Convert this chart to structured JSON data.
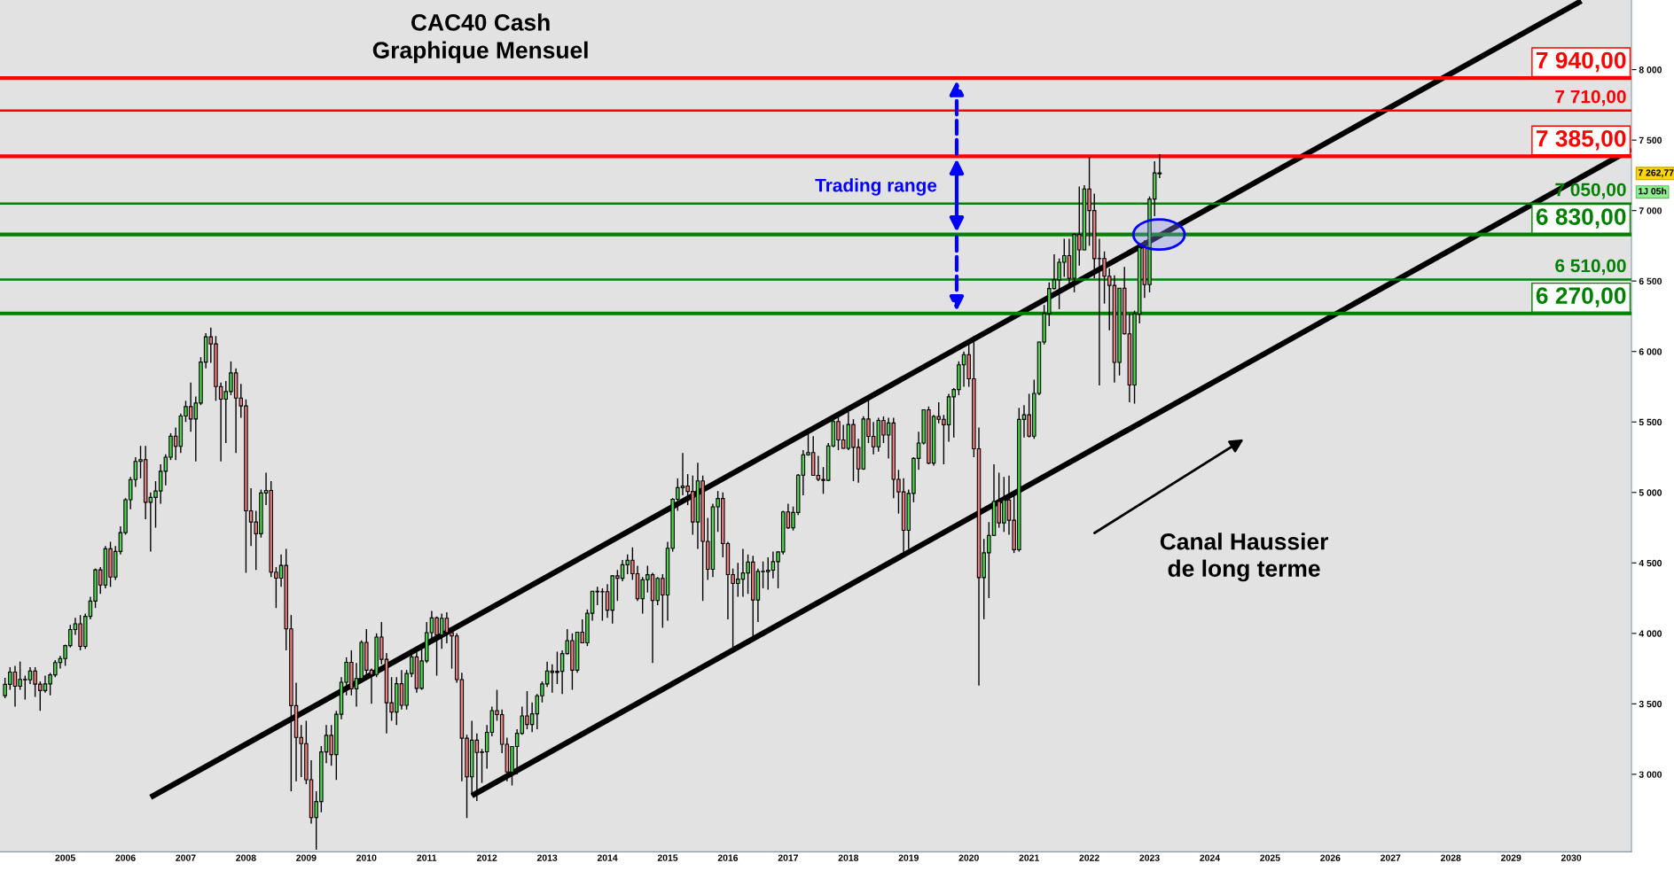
{
  "chart_data": {
    "type": "candlestick",
    "title": "CAC40 Cash\nGraphique Mensuel",
    "x": [
      "2004-01",
      "2004-02",
      "2004-03",
      "2004-04",
      "2004-05",
      "2004-06",
      "2004-07",
      "2004-08",
      "2004-09",
      "2004-10",
      "2004-11",
      "2004-12",
      "2005-01",
      "2005-02",
      "2005-03",
      "2005-04",
      "2005-05",
      "2005-06",
      "2005-07",
      "2005-08",
      "2005-09",
      "2005-10",
      "2005-11",
      "2005-12",
      "2006-01",
      "2006-02",
      "2006-03",
      "2006-04",
      "2006-05",
      "2006-06",
      "2006-07",
      "2006-08",
      "2006-09",
      "2006-10",
      "2006-11",
      "2006-12",
      "2007-01",
      "2007-02",
      "2007-03",
      "2007-04",
      "2007-05",
      "2007-06",
      "2007-07",
      "2007-08",
      "2007-09",
      "2007-10",
      "2007-11",
      "2007-12",
      "2008-01",
      "2008-02",
      "2008-03",
      "2008-04",
      "2008-05",
      "2008-06",
      "2008-07",
      "2008-08",
      "2008-09",
      "2008-10",
      "2008-11",
      "2008-12",
      "2009-01",
      "2009-02",
      "2009-03",
      "2009-04",
      "2009-05",
      "2009-06",
      "2009-07",
      "2009-08",
      "2009-09",
      "2009-10",
      "2009-11",
      "2009-12",
      "2010-01",
      "2010-02",
      "2010-03",
      "2010-04",
      "2010-05",
      "2010-06",
      "2010-07",
      "2010-08",
      "2010-09",
      "2010-10",
      "2010-11",
      "2010-12",
      "2011-01",
      "2011-02",
      "2011-03",
      "2011-04",
      "2011-05",
      "2011-06",
      "2011-07",
      "2011-08",
      "2011-09",
      "2011-10",
      "2011-11",
      "2011-12",
      "2012-01",
      "2012-02",
      "2012-03",
      "2012-04",
      "2012-05",
      "2012-06",
      "2012-07",
      "2012-08",
      "2012-09",
      "2012-10",
      "2012-11",
      "2012-12",
      "2013-01",
      "2013-02",
      "2013-03",
      "2013-04",
      "2013-05",
      "2013-06",
      "2013-07",
      "2013-08",
      "2013-09",
      "2013-10",
      "2013-11",
      "2013-12",
      "2014-01",
      "2014-02",
      "2014-03",
      "2014-04",
      "2014-05",
      "2014-06",
      "2014-07",
      "2014-08",
      "2014-09",
      "2014-10",
      "2014-11",
      "2014-12",
      "2015-01",
      "2015-02",
      "2015-03",
      "2015-04",
      "2015-05",
      "2015-06",
      "2015-07",
      "2015-08",
      "2015-09",
      "2015-10",
      "2015-11",
      "2015-12",
      "2016-01",
      "2016-02",
      "2016-03",
      "2016-04",
      "2016-05",
      "2016-06",
      "2016-07",
      "2016-08",
      "2016-09",
      "2016-10",
      "2016-11",
      "2016-12",
      "2017-01",
      "2017-02",
      "2017-03",
      "2017-04",
      "2017-05",
      "2017-06",
      "2017-07",
      "2017-08",
      "2017-09",
      "2017-10",
      "2017-11",
      "2017-12",
      "2018-01",
      "2018-02",
      "2018-03",
      "2018-04",
      "2018-05",
      "2018-06",
      "2018-07",
      "2018-08",
      "2018-09",
      "2018-10",
      "2018-11",
      "2018-12",
      "2019-01",
      "2019-02",
      "2019-03",
      "2019-04",
      "2019-05",
      "2019-06",
      "2019-07",
      "2019-08",
      "2019-09",
      "2019-10",
      "2019-11",
      "2019-12",
      "2020-01",
      "2020-02",
      "2020-03",
      "2020-04",
      "2020-05",
      "2020-06",
      "2020-07",
      "2020-08",
      "2020-09",
      "2020-10",
      "2020-11",
      "2020-12",
      "2021-01",
      "2021-02",
      "2021-03",
      "2021-04",
      "2021-05",
      "2021-06",
      "2021-07",
      "2021-08",
      "2021-09",
      "2021-10",
      "2021-11",
      "2021-12",
      "2022-01",
      "2022-02",
      "2022-03",
      "2022-04",
      "2022-05",
      "2022-06",
      "2022-07",
      "2022-08",
      "2022-09",
      "2022-10",
      "2022-11",
      "2022-12",
      "2023-01",
      "2023-02",
      "2023-03"
    ],
    "ohlc": [
      [
        3558,
        3685,
        3540,
        3638
      ],
      [
        3638,
        3760,
        3600,
        3725
      ],
      [
        3725,
        3770,
        3480,
        3625
      ],
      [
        3625,
        3800,
        3600,
        3674
      ],
      [
        3674,
        3700,
        3530,
        3670
      ],
      [
        3670,
        3760,
        3640,
        3733
      ],
      [
        3733,
        3760,
        3550,
        3640
      ],
      [
        3640,
        3660,
        3450,
        3594
      ],
      [
        3594,
        3700,
        3580,
        3641
      ],
      [
        3641,
        3720,
        3560,
        3706
      ],
      [
        3706,
        3810,
        3690,
        3793
      ],
      [
        3793,
        3840,
        3750,
        3821
      ],
      [
        3821,
        3920,
        3770,
        3913
      ],
      [
        3913,
        4060,
        3900,
        4027
      ],
      [
        4027,
        4110,
        3990,
        4068
      ],
      [
        4068,
        4130,
        3880,
        3908
      ],
      [
        3908,
        4140,
        3890,
        4121
      ],
      [
        4121,
        4260,
        4100,
        4229
      ],
      [
        4229,
        4460,
        4180,
        4451
      ],
      [
        4451,
        4470,
        4280,
        4343
      ],
      [
        4343,
        4620,
        4320,
        4600
      ],
      [
        4600,
        4650,
        4330,
        4400
      ],
      [
        4400,
        4620,
        4380,
        4581
      ],
      [
        4581,
        4760,
        4560,
        4715
      ],
      [
        4715,
        4960,
        4700,
        4948
      ],
      [
        4948,
        5110,
        4880,
        5091
      ],
      [
        5091,
        5250,
        5040,
        5220
      ],
      [
        5220,
        5330,
        5100,
        5233
      ],
      [
        5233,
        5330,
        4810,
        4930
      ],
      [
        4930,
        5000,
        4580,
        4965
      ],
      [
        4965,
        5080,
        4750,
        5010
      ],
      [
        5010,
        5200,
        4920,
        5150
      ],
      [
        5150,
        5270,
        5050,
        5250
      ],
      [
        5250,
        5420,
        5230,
        5399
      ],
      [
        5399,
        5460,
        5230,
        5327
      ],
      [
        5327,
        5560,
        5280,
        5542
      ],
      [
        5542,
        5650,
        5500,
        5609
      ],
      [
        5609,
        5780,
        5430,
        5521
      ],
      [
        5521,
        5680,
        5220,
        5634
      ],
      [
        5634,
        5960,
        5620,
        5925
      ],
      [
        5925,
        6130,
        5880,
        6104
      ],
      [
        6104,
        6170,
        5920,
        6054
      ],
      [
        6054,
        6110,
        5650,
        5751
      ],
      [
        5751,
        5780,
        5220,
        5662
      ],
      [
        5662,
        5790,
        5350,
        5716
      ],
      [
        5716,
        5930,
        5690,
        5848
      ],
      [
        5848,
        5880,
        5280,
        5670
      ],
      [
        5670,
        5770,
        5530,
        5614
      ],
      [
        5614,
        5660,
        4430,
        4870
      ],
      [
        4870,
        5030,
        4620,
        4790
      ],
      [
        4790,
        4870,
        4450,
        4707
      ],
      [
        4707,
        5020,
        4680,
        4996
      ],
      [
        4996,
        5140,
        4910,
        5014
      ],
      [
        5014,
        5080,
        4400,
        4434
      ],
      [
        4434,
        4470,
        4180,
        4392
      ],
      [
        4392,
        4560,
        4330,
        4482
      ],
      [
        4482,
        4600,
        3880,
        4032
      ],
      [
        4032,
        4130,
        2880,
        3487
      ],
      [
        3487,
        3650,
        2950,
        3262
      ],
      [
        3262,
        3350,
        2980,
        3218
      ],
      [
        3218,
        3380,
        2930,
        2962
      ],
      [
        2962,
        3100,
        2650,
        2693
      ],
      [
        2693,
        2880,
        2465,
        2807
      ],
      [
        2807,
        3200,
        2730,
        3159
      ],
      [
        3159,
        3350,
        3080,
        3277
      ],
      [
        3277,
        3350,
        3060,
        3140
      ],
      [
        3140,
        3450,
        2960,
        3426
      ],
      [
        3426,
        3690,
        3390,
        3653
      ],
      [
        3653,
        3830,
        3560,
        3795
      ],
      [
        3795,
        3880,
        3560,
        3607
      ],
      [
        3607,
        3790,
        3480,
        3680
      ],
      [
        3680,
        3950,
        3650,
        3936
      ],
      [
        3936,
        4030,
        3700,
        3739
      ],
      [
        3739,
        3750,
        3500,
        3708
      ],
      [
        3708,
        4000,
        3690,
        3974
      ],
      [
        3974,
        4080,
        3780,
        3816
      ],
      [
        3816,
        3860,
        3290,
        3508
      ],
      [
        3508,
        3690,
        3380,
        3442
      ],
      [
        3442,
        3690,
        3350,
        3643
      ],
      [
        3643,
        3740,
        3460,
        3490
      ],
      [
        3490,
        3740,
        3460,
        3715
      ],
      [
        3715,
        3880,
        3690,
        3833
      ],
      [
        3833,
        3900,
        3580,
        3610
      ],
      [
        3610,
        3900,
        3600,
        3805
      ],
      [
        3805,
        4080,
        3790,
        4005
      ],
      [
        4005,
        4160,
        3950,
        4110
      ],
      [
        4110,
        4120,
        3700,
        3989
      ],
      [
        3989,
        4140,
        3890,
        4107
      ],
      [
        4107,
        4150,
        3930,
        4006
      ],
      [
        4006,
        4020,
        3750,
        3982
      ],
      [
        3982,
        4000,
        3650,
        3672
      ],
      [
        3672,
        3720,
        2950,
        3256
      ],
      [
        3256,
        3280,
        2690,
        2982
      ],
      [
        2982,
        3380,
        2850,
        3242
      ],
      [
        3242,
        3290,
        2810,
        3155
      ],
      [
        3155,
        3180,
        2940,
        3160
      ],
      [
        3160,
        3350,
        3040,
        3298
      ],
      [
        3298,
        3480,
        3270,
        3452
      ],
      [
        3452,
        3600,
        3380,
        3424
      ],
      [
        3424,
        3460,
        3150,
        3213
      ],
      [
        3213,
        3260,
        2950,
        3017
      ],
      [
        3017,
        3200,
        2920,
        3197
      ],
      [
        3197,
        3320,
        3000,
        3291
      ],
      [
        3291,
        3480,
        3280,
        3414
      ],
      [
        3414,
        3590,
        3320,
        3354
      ],
      [
        3354,
        3510,
        3300,
        3429
      ],
      [
        3429,
        3570,
        3320,
        3557
      ],
      [
        3557,
        3660,
        3510,
        3641
      ],
      [
        3641,
        3800,
        3620,
        3733
      ],
      [
        3733,
        3780,
        3580,
        3723
      ],
      [
        3723,
        3870,
        3640,
        3731
      ],
      [
        3731,
        3880,
        3570,
        3857
      ],
      [
        3857,
        4030,
        3850,
        3949
      ],
      [
        3949,
        4000,
        3600,
        3739
      ],
      [
        3739,
        4010,
        3720,
        4008
      ],
      [
        4008,
        4100,
        3930,
        3933
      ],
      [
        3933,
        4170,
        3910,
        4143
      ],
      [
        4143,
        4300,
        4090,
        4299
      ],
      [
        4299,
        4330,
        4200,
        4295
      ],
      [
        4295,
        4320,
        4090,
        4296
      ],
      [
        4296,
        4350,
        4110,
        4165
      ],
      [
        4165,
        4410,
        4070,
        4408
      ],
      [
        4408,
        4450,
        4230,
        4391
      ],
      [
        4391,
        4520,
        4370,
        4487
      ],
      [
        4487,
        4560,
        4420,
        4519
      ],
      [
        4519,
        4610,
        4380,
        4423
      ],
      [
        4423,
        4480,
        4230,
        4246
      ],
      [
        4246,
        4400,
        4140,
        4381
      ],
      [
        4381,
        4480,
        4290,
        4416
      ],
      [
        4416,
        4430,
        3790,
        4233
      ],
      [
        4233,
        4400,
        4200,
        4390
      ],
      [
        4390,
        4420,
        4040,
        4272
      ],
      [
        4272,
        4650,
        4090,
        4604
      ],
      [
        4604,
        4960,
        4580,
        4951
      ],
      [
        4951,
        5100,
        4870,
        5034
      ],
      [
        5034,
        5280,
        4980,
        5046
      ],
      [
        5046,
        5130,
        4910,
        5007
      ],
      [
        5007,
        5120,
        4700,
        4790
      ],
      [
        4790,
        5210,
        4600,
        5082
      ],
      [
        5082,
        5120,
        4230,
        4653
      ],
      [
        4653,
        4820,
        4380,
        4455
      ],
      [
        4455,
        4920,
        4400,
        4898
      ],
      [
        4898,
        5010,
        4720,
        4957
      ],
      [
        4957,
        5000,
        4540,
        4637
      ],
      [
        4637,
        4650,
        4100,
        4417
      ],
      [
        4417,
        4460,
        3890,
        4354
      ],
      [
        4354,
        4500,
        4260,
        4385
      ],
      [
        4385,
        4600,
        4260,
        4429
      ],
      [
        4429,
        4560,
        4280,
        4506
      ],
      [
        4506,
        4550,
        3960,
        4237
      ],
      [
        4237,
        4460,
        4080,
        4440
      ],
      [
        4440,
        4510,
        4320,
        4438
      ],
      [
        4438,
        4540,
        4310,
        4448
      ],
      [
        4448,
        4580,
        4390,
        4509
      ],
      [
        4509,
        4580,
        4320,
        4578
      ],
      [
        4578,
        4870,
        4560,
        4862
      ],
      [
        4862,
        4920,
        4740,
        4749
      ],
      [
        4749,
        4900,
        4730,
        4858
      ],
      [
        4858,
        5130,
        4840,
        5123
      ],
      [
        5123,
        5300,
        4980,
        5267
      ],
      [
        5267,
        5440,
        5260,
        5283
      ],
      [
        5283,
        5400,
        5120,
        5121
      ],
      [
        5121,
        5260,
        5080,
        5093
      ],
      [
        5093,
        5180,
        4990,
        5086
      ],
      [
        5086,
        5350,
        5080,
        5330
      ],
      [
        5330,
        5520,
        5320,
        5503
      ],
      [
        5503,
        5540,
        5300,
        5373
      ],
      [
        5373,
        5480,
        5310,
        5313
      ],
      [
        5313,
        5570,
        5300,
        5482
      ],
      [
        5482,
        5520,
        5080,
        5320
      ],
      [
        5320,
        5380,
        5070,
        5167
      ],
      [
        5167,
        5540,
        5160,
        5521
      ],
      [
        5521,
        5660,
        5350,
        5398
      ],
      [
        5398,
        5500,
        5270,
        5324
      ],
      [
        5324,
        5530,
        5290,
        5511
      ],
      [
        5511,
        5540,
        5350,
        5407
      ],
      [
        5407,
        5530,
        5240,
        5493
      ],
      [
        5493,
        5530,
        4960,
        5093
      ],
      [
        5093,
        5160,
        4850,
        5004
      ],
      [
        5004,
        5100,
        4560,
        4731
      ],
      [
        4731,
        5020,
        4600,
        4993
      ],
      [
        4993,
        5250,
        4930,
        5241
      ],
      [
        5241,
        5430,
        5160,
        5351
      ],
      [
        5351,
        5590,
        5340,
        5586
      ],
      [
        5586,
        5610,
        5200,
        5208
      ],
      [
        5208,
        5550,
        5190,
        5539
      ],
      [
        5539,
        5640,
        5490,
        5519
      ],
      [
        5519,
        5550,
        5200,
        5480
      ],
      [
        5480,
        5700,
        5360,
        5678
      ],
      [
        5678,
        5740,
        5390,
        5730
      ],
      [
        5730,
        5930,
        5690,
        5905
      ],
      [
        5905,
        6000,
        5750,
        5978
      ],
      [
        5978,
        6070,
        5750,
        5806
      ],
      [
        5806,
        6110,
        5250,
        5310
      ],
      [
        5310,
        5460,
        3630,
        4396
      ],
      [
        4396,
        4670,
        4100,
        4572
      ],
      [
        4572,
        4790,
        4250,
        4695
      ],
      [
        4695,
        5200,
        4690,
        4936
      ],
      [
        4936,
        5140,
        4750,
        4784
      ],
      [
        4784,
        5110,
        4720,
        4947
      ],
      [
        4947,
        5120,
        4700,
        4803
      ],
      [
        4803,
        5010,
        4570,
        4594
      ],
      [
        4594,
        5600,
        4580,
        5518
      ],
      [
        5518,
        5620,
        5390,
        5551
      ],
      [
        5551,
        5700,
        5390,
        5399
      ],
      [
        5399,
        5800,
        5380,
        5703
      ],
      [
        5703,
        6070,
        5690,
        6067
      ],
      [
        6067,
        6330,
        6050,
        6269
      ],
      [
        6269,
        6490,
        6180,
        6447
      ],
      [
        6447,
        6690,
        6440,
        6508
      ],
      [
        6508,
        6660,
        6300,
        6633
      ],
      [
        6633,
        6800,
        6530,
        6680
      ],
      [
        6680,
        6800,
        6460,
        6520
      ],
      [
        6520,
        6840,
        6420,
        6830
      ],
      [
        6830,
        7170,
        6610,
        6721
      ],
      [
        6721,
        7180,
        6720,
        7153
      ],
      [
        7153,
        7380,
        6750,
        7000
      ],
      [
        7000,
        7120,
        6520,
        6659
      ],
      [
        6659,
        6800,
        5760,
        6660
      ],
      [
        6660,
        6710,
        6340,
        6534
      ],
      [
        6534,
        6590,
        6150,
        6469
      ],
      [
        6469,
        6540,
        5780,
        5923
      ],
      [
        5923,
        6450,
        5830,
        6449
      ],
      [
        6449,
        6600,
        6120,
        6125
      ],
      [
        6125,
        6270,
        5640,
        5762
      ],
      [
        5762,
        6290,
        5630,
        6267
      ],
      [
        6267,
        6750,
        6200,
        6739
      ],
      [
        6739,
        6790,
        6380,
        6474
      ],
      [
        6474,
        7100,
        6420,
        7082
      ],
      [
        7082,
        7350,
        6960,
        7267
      ],
      [
        7267,
        7400,
        7230,
        7262.77
      ]
    ],
    "series": [
      {
        "type": "line",
        "color": "#000000",
        "x": [
          "2006-06",
          "2030-03"
        ],
        "values": [
          2837,
          8487
        ]
      },
      {
        "type": "line",
        "color": "#000000",
        "x": [
          "2011-10",
          "2031-01"
        ],
        "values": [
          2849,
          7436
        ]
      }
    ],
    "xlim": [
      "2003-12",
      "2031-01"
    ],
    "xticks": [
      "2005",
      "2006",
      "2007",
      "2008",
      "2009",
      "2010",
      "2011",
      "2012",
      "2013",
      "2014",
      "2015",
      "2016",
      "2017",
      "2018",
      "2019",
      "2020",
      "2021",
      "2022",
      "2023",
      "2024",
      "2025",
      "2026",
      "2027",
      "2028",
      "2029",
      "2030"
    ],
    "ylim": [
      2450,
      8494
    ],
    "yticks": [
      {
        "value": 3000,
        "label": "3 000"
      },
      {
        "value": 3500,
        "label": "3 500"
      },
      {
        "value": 4000,
        "label": "4 000"
      },
      {
        "value": 4500,
        "label": "4 500"
      },
      {
        "value": 5000,
        "label": "5 000"
      },
      {
        "value": 5500,
        "label": "5 500"
      },
      {
        "value": 6000,
        "label": "6 000"
      },
      {
        "value": 6500,
        "label": "6 500"
      },
      {
        "value": 7000,
        "label": "7 000"
      },
      {
        "value": 7500,
        "label": "7 500"
      },
      {
        "value": 8000,
        "label": "8 000"
      }
    ],
    "ref_lines": [
      {
        "axis": "y",
        "value": 7940,
        "label": "7 940,00",
        "color": "#ff0000"
      },
      {
        "axis": "y",
        "value": 7710,
        "label": "7 710,00",
        "color": "#ff0000"
      },
      {
        "axis": "y",
        "value": 7385,
        "label": "7 385,00",
        "color": "#ff0000"
      },
      {
        "axis": "y",
        "value": 7050,
        "label": "7 050,00",
        "color": "#008000"
      },
      {
        "axis": "y",
        "value": 6830,
        "label": "6 830,00",
        "color": "#008000"
      },
      {
        "axis": "y",
        "value": 6510,
        "label": "6 510,00",
        "color": "#008000"
      },
      {
        "axis": "y",
        "value": 6270,
        "label": "6 270,00",
        "color": "#008000"
      }
    ],
    "annotations": [
      "Trading range",
      "Canal Haussier\nde long terme",
      "7 262,77",
      "1J 05h"
    ],
    "grid": false
  }
}
